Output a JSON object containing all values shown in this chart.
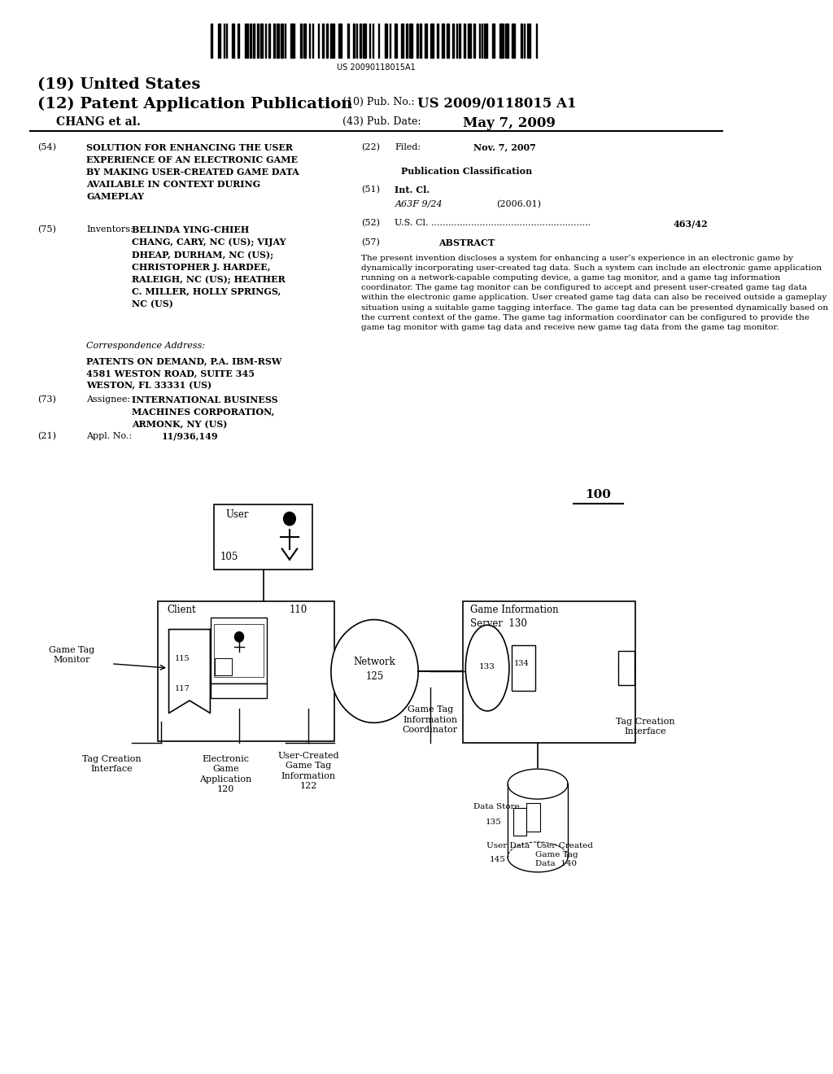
{
  "bg_color": "#ffffff",
  "barcode_text": "US 20090118015A1",
  "header": {
    "country": "(19) United States",
    "type_label": "(12) Patent Application Publication",
    "pub_no_label": "(10) Pub. No.:",
    "pub_no_value": "US 2009/0118015 A1",
    "inventor": "CHANG et al.",
    "date_label": "(43) Pub. Date:",
    "date_value": "May 7, 2009"
  },
  "fields": {
    "field54_label": "(54)",
    "field54_title": "SOLUTION FOR ENHANCING THE USER\nEXPERIENCE OF AN ELECTRONIC GAME\nBY MAKING USER-CREATED GAME DATA\nAVAILABLE IN CONTEXT DURING\nGAMEPLAY",
    "field75_label": "(75)",
    "field75_name": "Inventors:",
    "field75_value": "BELINDA YING-CHIEH\nCHANG, CARY, NC (US); VIJAY\nDHEAP, DURHAM, NC (US);\nCHRISTOPHER J. HARDEE,\nRALEIGH, NC (US); HEATHER\nC. MILLER, HOLLY SPRINGS,\nNC (US)",
    "corr_label": "Correspondence Address:",
    "corr_value": "PATENTS ON DEMAND, P.A. IBM-RSW\n4581 WESTON ROAD, SUITE 345\nWESTON, FL 33331 (US)",
    "field73_label": "(73)",
    "field73_name": "Assignee:",
    "field73_value": "INTERNATIONAL BUSINESS\nMACHINES CORPORATION,\nARMONK, NY (US)",
    "field21_label": "(21)",
    "field21_name": "Appl. No.:",
    "field21_value": "11/936,149",
    "field22_label": "(22)",
    "field22_name": "Filed:",
    "field22_value": "Nov. 7, 2007",
    "pub_class_header": "Publication Classification",
    "field51_label": "(51)",
    "field51_name": "Int. Cl.",
    "field51_class": "A63F 9/24",
    "field51_year": "(2006.01)",
    "field52_label": "(52)",
    "field52_name": "U.S. Cl. ........................................................",
    "field52_value": "463/42",
    "field57_label": "(57)",
    "field57_name": "ABSTRACT",
    "abstract": "The present invention discloses a system for enhancing a user’s experience in an electronic game by dynamically incorporating user-created tag data. Such a system can include an electronic game application running on a network-capable computing device, a game tag monitor, and a game tag information coordinator. The game tag monitor can be configured to accept and present user-created game tag data within the electronic game application. User created game tag data can also be received outside a gameplay situation using a suitable game tagging interface. The game tag data can be presented dynamically based on the current context of the game. The game tag information coordinator can be configured to provide the game tag monitor with game tag data and receive new game tag data from the game tag monitor."
  }
}
